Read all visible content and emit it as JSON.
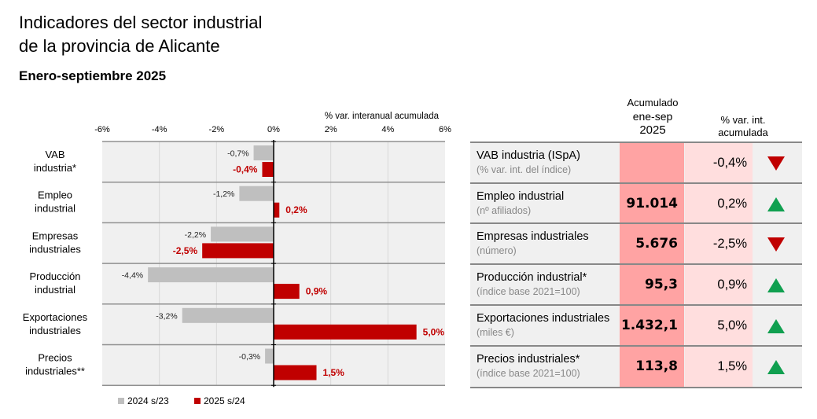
{
  "header": {
    "title_line1": "Indicadores del sector industrial",
    "title_line2": "de la provincia de Alicante",
    "subtitle": "Enero-septiembre 2025"
  },
  "chart_data": {
    "type": "bar",
    "orientation": "horizontal",
    "title": "% var. interanual acumulada",
    "xlabel": "",
    "ylabel": "",
    "xlim": [
      -6,
      6
    ],
    "x_ticks": [
      "-6%",
      "-4%",
      "-2%",
      "0%",
      "2%",
      "4%",
      "6%"
    ],
    "x_tick_values": [
      -6,
      -4,
      -2,
      0,
      2,
      4,
      6
    ],
    "grid": true,
    "legend_position": "bottom-left",
    "categories": [
      [
        "VAB",
        "industria*"
      ],
      [
        "Empleo",
        "industrial"
      ],
      [
        "Empresas",
        "industriales"
      ],
      [
        "Producción",
        "industrial"
      ],
      [
        "Exportaciones",
        "industriales"
      ],
      [
        "Precios",
        "industriales**"
      ]
    ],
    "series": [
      {
        "name": "2024 s/23",
        "color": "#bfbfbf",
        "values": [
          -0.7,
          -1.2,
          -2.2,
          -4.4,
          -3.2,
          -0.3
        ],
        "labels": [
          "-0,7%",
          "-1,2%",
          "-2,2%",
          "-4,4%",
          "-3,2%",
          "-0,3%"
        ]
      },
      {
        "name": "2025 s/24",
        "color": "#c00000",
        "values": [
          -0.4,
          0.2,
          -2.5,
          0.9,
          5.0,
          1.5
        ],
        "labels": [
          "-0,4%",
          "0,2%",
          "-2,5%",
          "0,9%",
          "5,0%",
          "1,5%"
        ]
      }
    ]
  },
  "table": {
    "headers": {
      "acumulado": [
        "Acumulado",
        "ene-sep",
        "2025"
      ],
      "variacion": [
        "% var. int.",
        "acumulada"
      ]
    },
    "rows": [
      {
        "name": "VAB industria (ISpA)",
        "unit": "(% var. int. del índice)",
        "value": "",
        "variation": "-0,4%",
        "trend": "down"
      },
      {
        "name": "Empleo industrial",
        "unit": "(nº afiliados)",
        "value": "91.014",
        "variation": "0,2%",
        "trend": "up"
      },
      {
        "name": "Empresas industriales",
        "unit": "(número)",
        "value": "5.676",
        "variation": "-2,5%",
        "trend": "down"
      },
      {
        "name": "Producción industrial*",
        "unit": "(índice base 2021=100)",
        "value": "95,3",
        "variation": "0,9%",
        "trend": "up"
      },
      {
        "name": "Exportaciones industriales",
        "unit": "(miles €)",
        "value": "1.432,1",
        "variation": "5,0%",
        "trend": "up"
      },
      {
        "name": "Precios industriales*",
        "unit": "(índice base 2021=100)",
        "value": "113,8",
        "variation": "1,5%",
        "trend": "up"
      }
    ]
  }
}
